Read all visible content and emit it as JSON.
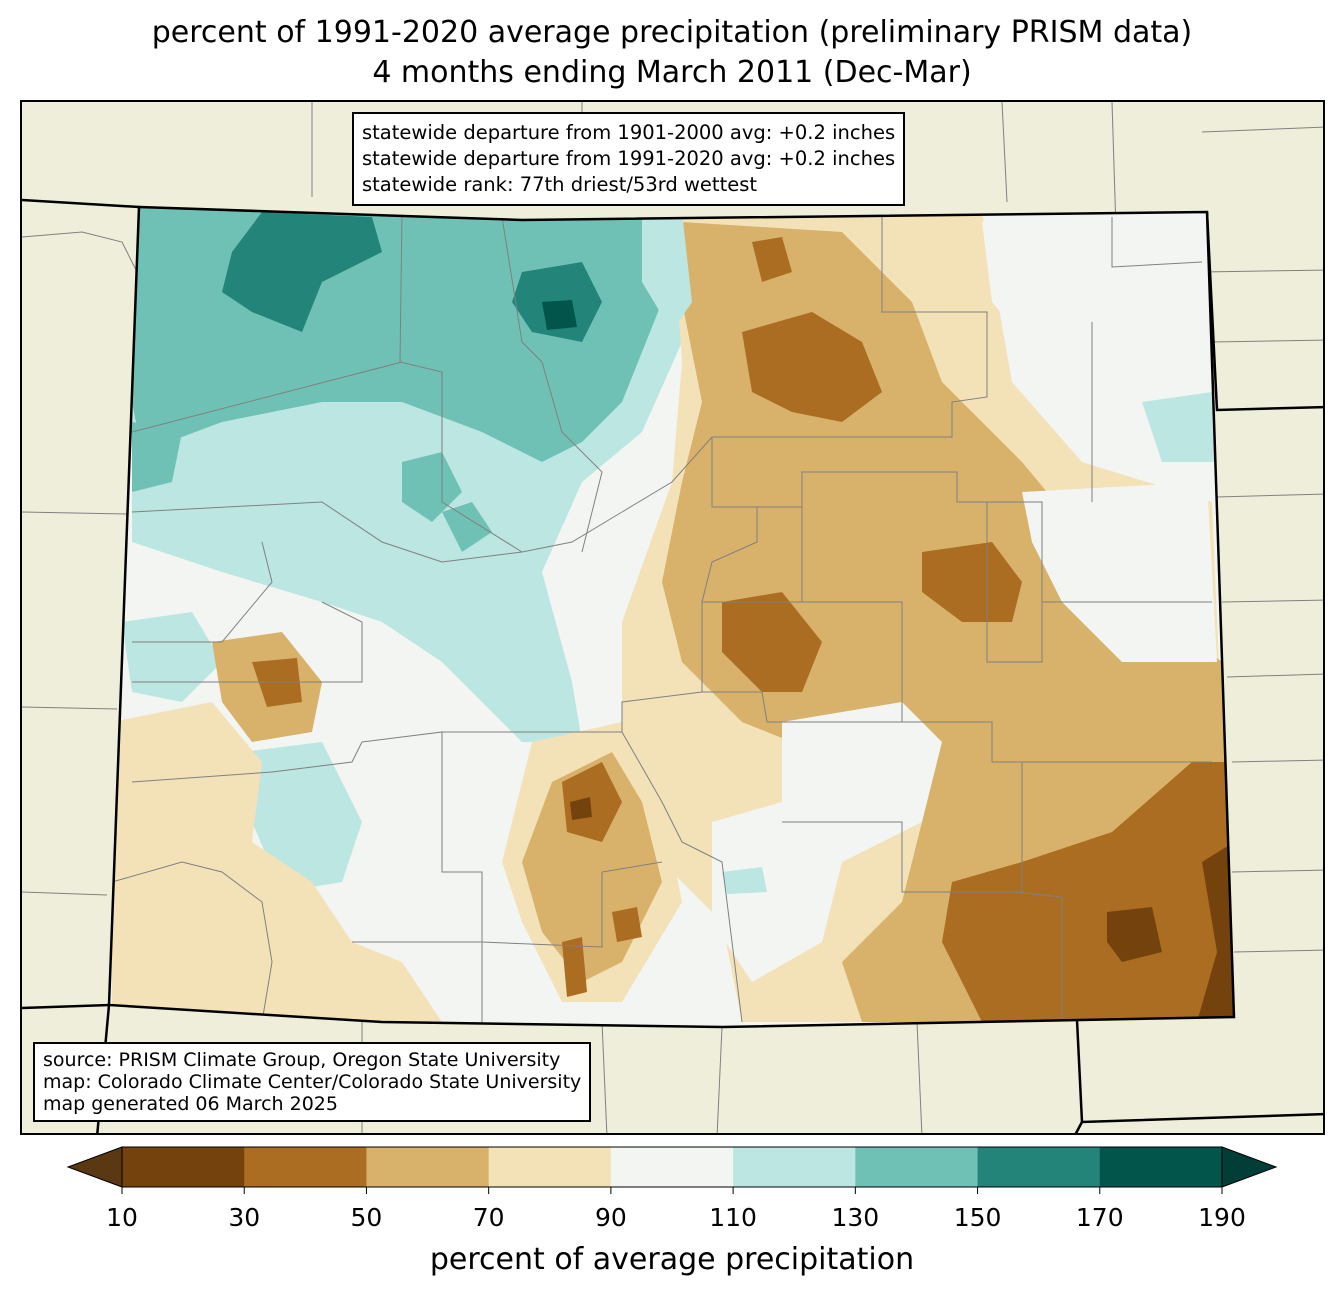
{
  "title": {
    "line1": "percent of 1991-2020 average precipitation (preliminary PRISM data)",
    "line2": "4 months ending March 2011 (Dec-Mar)"
  },
  "stats_box": {
    "line1": "statewide departure from 1901-2000 avg: +0.2 inches",
    "line2": "statewide departure from 1991-2020 avg: +0.2 inches",
    "line3": "statewide rank: 77th driest/53rd wettest"
  },
  "source_box": {
    "line1": "source: PRISM Climate Group, Oregon State University",
    "line2": "map: Colorado Climate Center/Colorado State University",
    "line3": "map generated 06 March 2025"
  },
  "colorbar": {
    "title": "percent of average precipitation",
    "ticks": [
      "10",
      "30",
      "50",
      "70",
      "90",
      "110",
      "130",
      "150",
      "170",
      "190"
    ],
    "colors": [
      "#5a3811",
      "#74420d",
      "#ab6d22",
      "#d8b26b",
      "#f3e2b8",
      "#f3f5f3",
      "#bce6e1",
      "#70c1b5",
      "#238479",
      "#01554a",
      "#013e37"
    ],
    "under_color": "#5a3811",
    "over_color": "#013e37"
  },
  "map_colors": {
    "background": "#efeedb",
    "county_lines": "#808080",
    "state_border": "#000000"
  }
}
